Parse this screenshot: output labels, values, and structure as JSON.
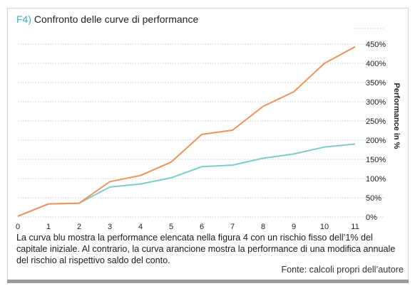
{
  "figure": {
    "label": "F4)",
    "title": "Confronto delle curve di performance",
    "caption": "La curva blu mostra la performance elencata nella figura 4 con un rischio fisso dell’1% del capitale iniziale. Al contrario, la curva arancione mostra la performance di una modifica annuale del rischio al rispettivo saldo del conto.",
    "source": "Fonte: calcoli propri dell’autore"
  },
  "colors": {
    "orange": "#f0935c",
    "teal": "#7dcdc8",
    "grid": "#c8c8c8",
    "title_label": "#4aa8c0"
  },
  "chart_data": {
    "type": "line",
    "x": [
      0,
      1,
      2,
      3,
      4,
      5,
      6,
      7,
      8,
      9,
      10,
      11
    ],
    "series": [
      {
        "color": "#f0935c",
        "values": [
          2,
          34,
          36,
          92,
          108,
          143,
          215,
          226,
          288,
          326,
          400,
          443
        ]
      },
      {
        "color": "#7dcdc8",
        "values": [
          2,
          34,
          36,
          78,
          86,
          102,
          131,
          135,
          153,
          164,
          182,
          190
        ]
      }
    ],
    "xlim": [
      0,
      11
    ],
    "ylim": [
      0,
      450
    ],
    "yticks": [
      0,
      50,
      100,
      150,
      200,
      250,
      300,
      350,
      400,
      450
    ],
    "ytick_labels": [
      "0%",
      "50%",
      "100%",
      "150%",
      "200%",
      "250%",
      "300%",
      "350%",
      "400%",
      "450%"
    ],
    "xticks": [
      0,
      1,
      2,
      3,
      4,
      5,
      6,
      7,
      8,
      9,
      10,
      11
    ],
    "ylabel": "Performance in %",
    "xlabel": "",
    "grid": true,
    "legend": "none"
  }
}
